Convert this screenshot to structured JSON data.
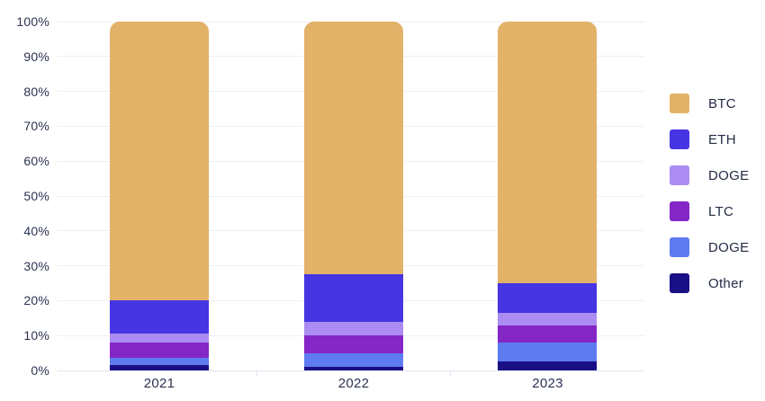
{
  "chart_data": {
    "type": "bar",
    "variant": "stacked-100-percent",
    "title": "",
    "xlabel": "",
    "ylabel": "",
    "categories": [
      "2021",
      "2022",
      "2023"
    ],
    "series": [
      {
        "name": "BTC",
        "color": "#e2b269",
        "values": [
          80,
          72.5,
          75
        ]
      },
      {
        "name": "ETH",
        "color": "#4635e2",
        "values": [
          9.5,
          13.5,
          8.5
        ]
      },
      {
        "name": "DOGE",
        "color": "#aa8cf2",
        "values": [
          2.5,
          4,
          3.5
        ]
      },
      {
        "name": "LTC",
        "color": "#8526c7",
        "values": [
          4.5,
          5,
          5
        ]
      },
      {
        "name": "DOGE",
        "color": "#5e7cf0",
        "values": [
          2,
          4,
          5.5
        ]
      },
      {
        "name": "Other",
        "color": "#1a1085",
        "values": [
          1.5,
          1,
          2.5
        ]
      }
    ],
    "y_axis": {
      "min": 0,
      "max": 100,
      "tick_step": 10,
      "tick_labels": [
        "100%",
        "90%",
        "80%",
        "70%",
        "60%",
        "50%",
        "40%",
        "30%",
        "20%",
        "10%",
        "0%"
      ]
    },
    "legend": {
      "position": "right",
      "entries": [
        "BTC",
        "ETH",
        "DOGE",
        "LTC",
        "DOGE",
        "Other"
      ]
    },
    "grid": "horizontal"
  }
}
